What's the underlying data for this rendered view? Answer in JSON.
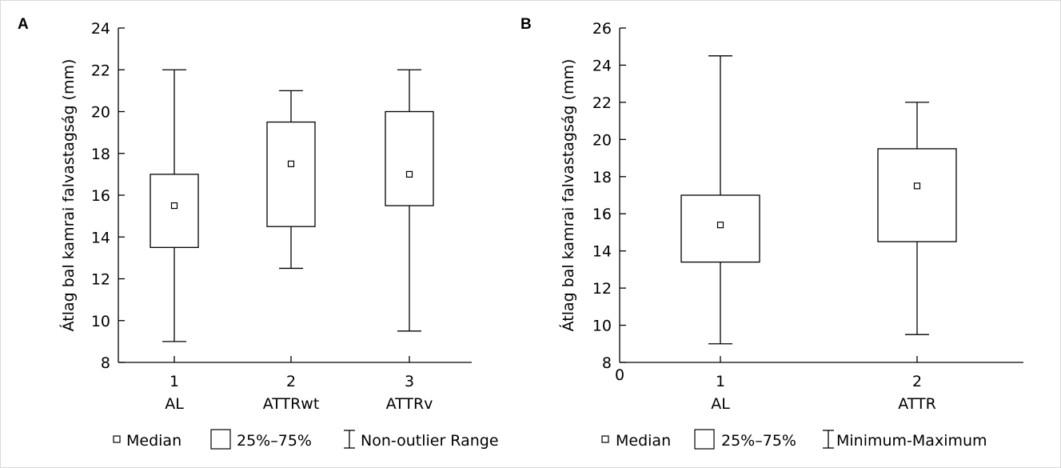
{
  "chart_data": [
    {
      "type": "box",
      "panel_label": "A",
      "ylabel": "Átlag bal kamrai falvastagság (mm)",
      "ylim": [
        8,
        24
      ],
      "yticks": [
        8,
        10,
        12,
        14,
        16,
        18,
        20,
        22,
        24
      ],
      "categories": [
        {
          "x": "1",
          "label": "AL"
        },
        {
          "x": "2",
          "label": "ATTRwt"
        },
        {
          "x": "3",
          "label": "ATTRv"
        }
      ],
      "boxes": [
        {
          "min": 9,
          "q1": 13.5,
          "median": 15.5,
          "q3": 17,
          "max": 22
        },
        {
          "min": 12.5,
          "q1": 14.5,
          "median": 17.5,
          "q3": 19.5,
          "max": 21
        },
        {
          "min": 9.5,
          "q1": 15.5,
          "median": 17,
          "q3": 20,
          "max": 22
        }
      ],
      "legend": {
        "median": "Median",
        "box": "25%–75%",
        "whisker": "Non-outlier Range"
      },
      "legend_position": "bottom"
    },
    {
      "type": "box",
      "panel_label": "B",
      "ylabel": "Átlag bal kamrai falvastagság (mm)",
      "ylim": [
        8,
        26
      ],
      "yticks": [
        8,
        10,
        12,
        14,
        16,
        18,
        20,
        22,
        24,
        26
      ],
      "xorigin_label": "0",
      "categories": [
        {
          "x": "1",
          "label": "AL"
        },
        {
          "x": "2",
          "label": "ATTR"
        }
      ],
      "boxes": [
        {
          "min": 9,
          "q1": 13.4,
          "median": 15.4,
          "q3": 17,
          "max": 24.5
        },
        {
          "min": 9.5,
          "q1": 14.5,
          "median": 17.5,
          "q3": 19.5,
          "max": 22
        }
      ],
      "legend": {
        "median": "Median",
        "box": "25%–75%",
        "whisker": "Minimum-Maximum"
      },
      "legend_position": "bottom"
    }
  ]
}
